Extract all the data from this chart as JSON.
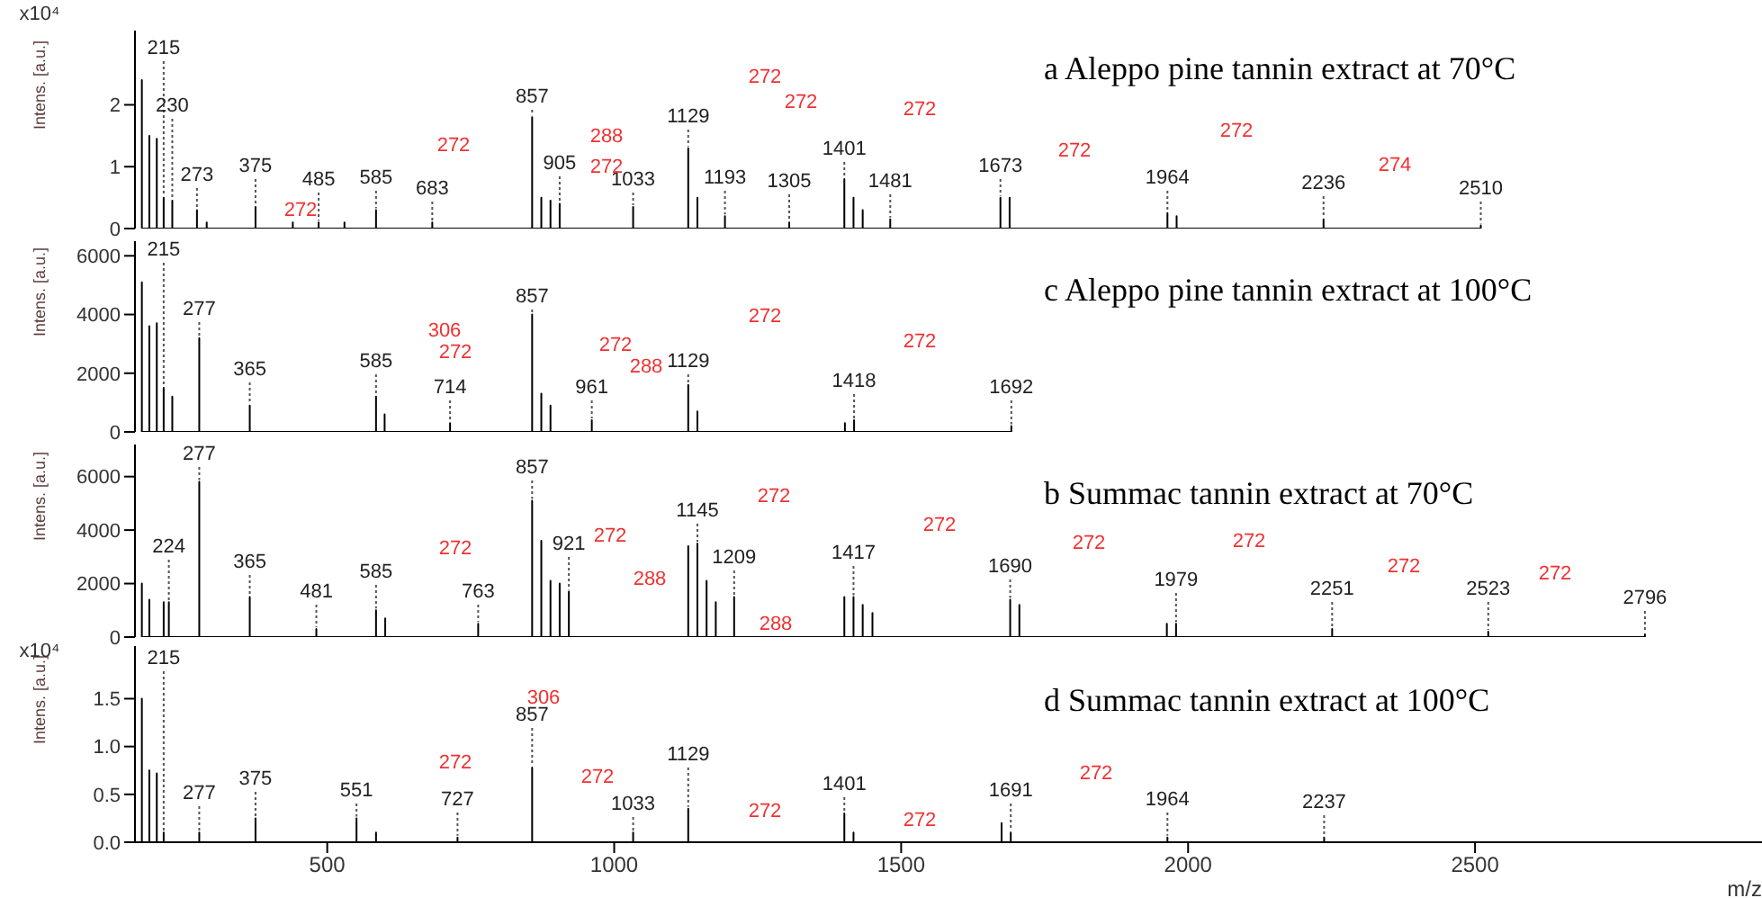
{
  "chart_data": [
    {
      "type": "line",
      "title": "a Aleppo pine tannin extract at 70°C",
      "ylabel": "Intens. [a.u.]",
      "xlim": [
        165,
        3000
      ],
      "ylim": [
        0,
        3.2
      ],
      "yticks": [
        0,
        1,
        2
      ],
      "tick_labels": "y",
      "series": [
        {
          "color": "#000000",
          "x": [
            177,
            177,
            177,
            190,
            190,
            190,
            203,
            203,
            203,
            215,
            215,
            215,
            230,
            230,
            230,
            273,
            273,
            273,
            290,
            290,
            290,
            375,
            375,
            375,
            440,
            440,
            440,
            485,
            485,
            485,
            530,
            530,
            530,
            585,
            585,
            585,
            683,
            683,
            683,
            857,
            857,
            857,
            873,
            873,
            873,
            889,
            889,
            889,
            905,
            905,
            905,
            1033,
            1033,
            1033,
            1129,
            1129,
            1129,
            1145,
            1145,
            1145,
            1193,
            1193,
            1193,
            1305,
            1305,
            1305,
            1401,
            1401,
            1401,
            1417,
            1417,
            1417,
            1433,
            1433,
            1433,
            1481,
            1481,
            1481,
            1673,
            1673,
            1673,
            1689,
            1689,
            1689,
            1964,
            1964,
            1964,
            1980,
            1980,
            1980,
            2236,
            2236,
            2236,
            2510,
            2510,
            2510
          ],
          "values": [
            0,
            2.4,
            0,
            0,
            1.5,
            0,
            0,
            1.45,
            0,
            0,
            0.5,
            0,
            0,
            0.45,
            0,
            0,
            0.3,
            0,
            0,
            0.1,
            0,
            0,
            0.35,
            0,
            0,
            0.1,
            0,
            0,
            0.1,
            0,
            0,
            0.1,
            0,
            0,
            0.3,
            0,
            0,
            0.1,
            0,
            0,
            1.8,
            0,
            0,
            0.5,
            0,
            0,
            0.45,
            0,
            0,
            0.4,
            0,
            0,
            0.35,
            0,
            0,
            1.3,
            0,
            0,
            0.5,
            0,
            0,
            0.2,
            0,
            0,
            0.1,
            0,
            0,
            0.8,
            0,
            0,
            0.5,
            0,
            0,
            0.3,
            0,
            0,
            0.15,
            0,
            0,
            0.5,
            0,
            0,
            0.5,
            0,
            0,
            0.25,
            0,
            0,
            0.2,
            0,
            0,
            0.15,
            0,
            0,
            0.05,
            0
          ]
        }
      ],
      "annotations": [
        "x10⁴",
        "272",
        "272",
        "288",
        "272",
        "272",
        "272",
        "272",
        "272",
        "272",
        "274",
        {
          "text": "215",
          "x": 215,
          "y": 0.5
        },
        {
          "text": "230",
          "x": 230,
          "y": 0.45
        },
        {
          "text": "273",
          "x": 273,
          "y": 0.3
        },
        {
          "text": "375",
          "x": 375,
          "y": 0.35
        },
        {
          "text": "485",
          "x": 485,
          "y": 0.1
        },
        {
          "text": "585",
          "x": 585,
          "y": 0.3
        },
        {
          "text": "683",
          "x": 683,
          "y": 0.1
        },
        {
          "text": "857",
          "x": 857,
          "y": 1.8
        },
        {
          "text": "905",
          "x": 905,
          "y": 0.4
        },
        {
          "text": "1033",
          "x": 1033,
          "y": 0.35
        },
        {
          "text": "1129",
          "x": 1129,
          "y": 1.3
        },
        {
          "text": "1193",
          "x": 1193,
          "y": 0.2
        },
        {
          "text": "1305",
          "x": 1305,
          "y": 0.1
        },
        {
          "text": "1401",
          "x": 1401,
          "y": 0.8
        },
        {
          "text": "1481",
          "x": 1481,
          "y": 0.15
        },
        {
          "text": "1673",
          "x": 1673,
          "y": 0.5
        },
        {
          "text": "1964",
          "x": 1964,
          "y": 0.25
        },
        {
          "text": "2236",
          "x": 2236,
          "y": 0.15
        },
        {
          "text": "2510",
          "x": 2510,
          "y": 0.05
        }
      ]
    },
    {
      "type": "line",
      "title": "c Aleppo pine tannin extract at 100°C",
      "ylabel": "Intens. [a.u.]",
      "xlim": [
        165,
        3000
      ],
      "ylim": [
        0,
        6500
      ],
      "yticks": [
        0,
        2000,
        4000,
        6000
      ],
      "tick_labels": "y",
      "series": [
        {
          "color": "#000000",
          "x": [
            177,
            177,
            177,
            190,
            190,
            190,
            203,
            203,
            203,
            215,
            215,
            215,
            230,
            230,
            230,
            277,
            277,
            277,
            365,
            365,
            365,
            585,
            585,
            585,
            600,
            600,
            600,
            714,
            714,
            714,
            857,
            857,
            857,
            873,
            873,
            873,
            889,
            889,
            889,
            961,
            961,
            961,
            1129,
            1129,
            1129,
            1145,
            1145,
            1145,
            1402,
            1402,
            1402,
            1418,
            1418,
            1418,
            1692,
            1692,
            1692
          ],
          "values": [
            0,
            5100,
            0,
            0,
            3600,
            0,
            0,
            3700,
            0,
            0,
            1500,
            0,
            0,
            1200,
            0,
            0,
            3200,
            0,
            0,
            900,
            0,
            0,
            1200,
            0,
            0,
            600,
            0,
            0,
            300,
            0,
            0,
            4000,
            0,
            0,
            1300,
            0,
            0,
            900,
            0,
            0,
            400,
            0,
            0,
            1600,
            0,
            0,
            700,
            0,
            0,
            300,
            0,
            0,
            400,
            0,
            0,
            200,
            0
          ]
        }
      ],
      "annotations": [
        "306",
        "272",
        "272",
        "288",
        "272",
        "272",
        {
          "text": "215",
          "x": 215,
          "y": 1500
        },
        {
          "text": "277",
          "x": 277,
          "y": 3200
        },
        {
          "text": "365",
          "x": 365,
          "y": 900
        },
        {
          "text": "585",
          "x": 585,
          "y": 1200
        },
        {
          "text": "714",
          "x": 714,
          "y": 300
        },
        {
          "text": "857",
          "x": 857,
          "y": 4000
        },
        {
          "text": "961",
          "x": 961,
          "y": 400
        },
        {
          "text": "1129",
          "x": 1129,
          "y": 1600
        },
        {
          "text": "1418",
          "x": 1418,
          "y": 400
        },
        {
          "text": "1692",
          "x": 1692,
          "y": 200
        }
      ]
    },
    {
      "type": "line",
      "title": "b Summac tannin extract at 70°C",
      "ylabel": "Intens. [a.u.]",
      "xlim": [
        165,
        3000
      ],
      "ylim": [
        0,
        7200
      ],
      "yticks": [
        0,
        2000,
        4000,
        6000
      ],
      "tick_labels": "y",
      "series": [
        {
          "color": "#000000",
          "x": [
            177,
            177,
            177,
            190,
            190,
            190,
            215,
            215,
            215,
            224,
            224,
            224,
            277,
            277,
            277,
            365,
            365,
            365,
            481,
            481,
            481,
            585,
            585,
            585,
            601,
            601,
            601,
            763,
            763,
            763,
            857,
            857,
            857,
            873,
            873,
            873,
            889,
            889,
            889,
            905,
            905,
            905,
            921,
            921,
            921,
            1129,
            1129,
            1129,
            1145,
            1145,
            1145,
            1161,
            1161,
            1161,
            1177,
            1177,
            1177,
            1209,
            1209,
            1209,
            1401,
            1401,
            1401,
            1417,
            1417,
            1417,
            1433,
            1433,
            1433,
            1450,
            1450,
            1450,
            1690,
            1690,
            1690,
            1706,
            1706,
            1706,
            1963,
            1963,
            1963,
            1979,
            1979,
            1979,
            2251,
            2251,
            2251,
            2523,
            2523,
            2523,
            2796,
            2796,
            2796
          ],
          "values": [
            0,
            2000,
            0,
            0,
            1400,
            0,
            0,
            1300,
            0,
            0,
            1300,
            0,
            0,
            5800,
            0,
            0,
            1500,
            0,
            0,
            300,
            0,
            0,
            1000,
            0,
            0,
            700,
            0,
            0,
            500,
            0,
            0,
            5100,
            0,
            0,
            3600,
            0,
            0,
            2100,
            0,
            0,
            2000,
            0,
            0,
            1700,
            0,
            0,
            3400,
            0,
            0,
            3500,
            0,
            0,
            2100,
            0,
            0,
            1300,
            0,
            0,
            1500,
            0,
            0,
            1500,
            0,
            0,
            1500,
            0,
            0,
            1200,
            0,
            0,
            900,
            0,
            0,
            1400,
            0,
            0,
            1200,
            0,
            0,
            500,
            0,
            0,
            500,
            0,
            0,
            300,
            0,
            0,
            200,
            0,
            0,
            100,
            0
          ]
        }
      ],
      "annotations": [
        "272",
        "272",
        "288",
        "288",
        "272",
        "272",
        "272",
        "272",
        "272",
        "272",
        {
          "text": "224",
          "x": 224,
          "y": 1300
        },
        {
          "text": "277",
          "x": 277,
          "y": 5800
        },
        {
          "text": "365",
          "x": 365,
          "y": 1500
        },
        {
          "text": "481",
          "x": 481,
          "y": 300
        },
        {
          "text": "585",
          "x": 585,
          "y": 1000
        },
        {
          "text": "763",
          "x": 763,
          "y": 500
        },
        {
          "text": "857",
          "x": 857,
          "y": 5100
        },
        {
          "text": "921",
          "x": 921,
          "y": 1700
        },
        {
          "text": "1145",
          "x": 1145,
          "y": 3500
        },
        {
          "text": "1209",
          "x": 1209,
          "y": 1500
        },
        {
          "text": "1417",
          "x": 1417,
          "y": 1500
        },
        {
          "text": "1690",
          "x": 1690,
          "y": 1400
        },
        {
          "text": "1979",
          "x": 1979,
          "y": 500
        },
        {
          "text": "2251",
          "x": 2251,
          "y": 300
        },
        {
          "text": "2523",
          "x": 2523,
          "y": 200
        },
        {
          "text": "2796",
          "x": 2796,
          "y": 100
        }
      ]
    },
    {
      "type": "line",
      "title": "d Summac tannin extract at 100°C",
      "ylabel": "Intens. [a.u.]",
      "xlabel": "m/z",
      "xlim": [
        165,
        3000
      ],
      "xticks": [
        500,
        1000,
        1500,
        2000,
        2500
      ],
      "ylim": [
        0,
        2.05
      ],
      "yticks": [
        {
          "value": 0,
          "label": "0.0"
        },
        {
          "value": 0.5,
          "label": "0.5"
        },
        {
          "value": 1,
          "label": "1.0"
        },
        {
          "value": 1.5,
          "label": "1.5"
        }
      ],
      "series": [
        {
          "color": "#000000",
          "x": [
            177,
            177,
            177,
            190,
            190,
            190,
            203,
            203,
            203,
            215,
            215,
            215,
            277,
            277,
            277,
            375,
            375,
            375,
            551,
            551,
            551,
            585,
            585,
            585,
            727,
            727,
            727,
            857,
            857,
            857,
            1033,
            1033,
            1033,
            1129,
            1129,
            1129,
            1401,
            1401,
            1401,
            1417,
            1417,
            1417,
            1675,
            1675,
            1675,
            1691,
            1691,
            1691,
            1964,
            1964,
            1964,
            2237,
            2237,
            2237
          ],
          "values": [
            0,
            1.5,
            0,
            0,
            0.75,
            0,
            0,
            0.72,
            0,
            0,
            0.1,
            0,
            0,
            0.1,
            0,
            0,
            0.25,
            0,
            0,
            0.25,
            0,
            0,
            0.1,
            0,
            0,
            0.05,
            0,
            0,
            0.78,
            0,
            0,
            0.1,
            0,
            0,
            0.35,
            0,
            0,
            0.3,
            0,
            0,
            0.1,
            0,
            0,
            0.2,
            0,
            0,
            0.1,
            0,
            0,
            0.05,
            0,
            0,
            0.05,
            0
          ]
        }
      ],
      "annotations": [
        "x10⁴",
        "306",
        "272",
        "272",
        "272",
        "272",
        "272",
        {
          "text": "215",
          "x": 215,
          "y": 0.1
        },
        {
          "text": "277",
          "x": 277,
          "y": 0.1
        },
        {
          "text": "375",
          "x": 375,
          "y": 0.25
        },
        {
          "text": "551",
          "x": 551,
          "y": 0.25
        },
        {
          "text": "727",
          "x": 727,
          "y": 0.05
        },
        {
          "text": "857",
          "x": 857,
          "y": 0.78
        },
        {
          "text": "1033",
          "x": 1033,
          "y": 0.1
        },
        {
          "text": "1129",
          "x": 1129,
          "y": 0.35
        },
        {
          "text": "1401",
          "x": 1401,
          "y": 0.3
        },
        {
          "text": "1691",
          "x": 1691,
          "y": 0.1
        },
        {
          "text": "1964",
          "x": 1964,
          "y": 0.05
        },
        {
          "text": "2237",
          "x": 2237,
          "y": 0.05
        }
      ]
    }
  ]
}
